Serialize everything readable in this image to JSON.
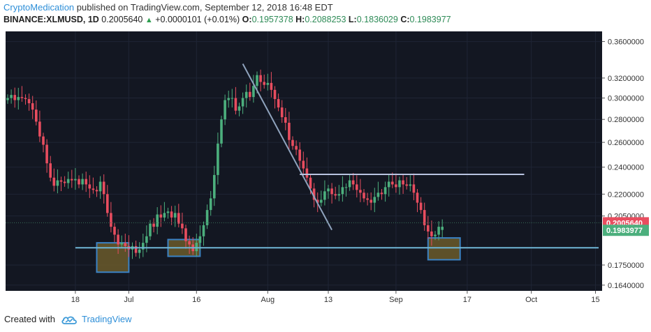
{
  "header": {
    "author": "CryptoMedication",
    "published": "published on TradingView.com, September 12, 2018 16:48 EDT",
    "symbol": "BINANCE:XLMUSD, 1D",
    "last": "0.2005640",
    "change": "+0.0000101 (+0.01%)",
    "o_label": "O:",
    "o_value": "0.1957378",
    "h_label": "H:",
    "h_value": "0.2088253",
    "l_label": "L:",
    "l_value": "0.1836029",
    "c_label": "C:",
    "c_value": "0.1983977"
  },
  "footer": {
    "created_with": "Created with",
    "brand": "TradingView",
    "logo_icon": "tradingview-cloud-icon"
  },
  "colors": {
    "background": "#131722",
    "up": "#4caf7d",
    "down": "#e84d5f",
    "box_fill": "#6b5a2a",
    "box_stroke": "#3b82c4",
    "trendline": "#8fa3bd",
    "resistance": "#b8c3e0",
    "support": "#6fb6d6"
  },
  "chart_data": {
    "type": "candlestick",
    "price_scale": "log",
    "x_ticks": [
      "18",
      "Jul",
      "16",
      "Aug",
      "13",
      "Sep",
      "17",
      "Oct",
      "15"
    ],
    "y_ticks": [
      "0.3600000",
      "0.3200000",
      "0.3000000",
      "0.2800000",
      "0.2600000",
      "0.2400000",
      "0.2200000",
      "0.2050000",
      "0.1750000",
      "0.1640000"
    ],
    "last_price_label": "0.2005640",
    "close_label": "0.1983977",
    "ylim": [
      0.161,
      0.372
    ],
    "closes": [
      0.3,
      0.303,
      0.298,
      0.301,
      0.3,
      0.299,
      0.295,
      0.289,
      0.278,
      0.265,
      0.258,
      0.243,
      0.232,
      0.226,
      0.23,
      0.229,
      0.228,
      0.231,
      0.23,
      0.231,
      0.227,
      0.231,
      0.227,
      0.224,
      0.223,
      0.222,
      0.229,
      0.22,
      0.207,
      0.198,
      0.193,
      0.187,
      0.188,
      0.186,
      0.184,
      0.186,
      0.182,
      0.184,
      0.188,
      0.192,
      0.2,
      0.198,
      0.206,
      0.204,
      0.207,
      0.208,
      0.204,
      0.207,
      0.2,
      0.197,
      0.189,
      0.187,
      0.183,
      0.188,
      0.192,
      0.199,
      0.209,
      0.217,
      0.234,
      0.259,
      0.28,
      0.298,
      0.3,
      0.3,
      0.288,
      0.292,
      0.3,
      0.306,
      0.301,
      0.312,
      0.323,
      0.316,
      0.313,
      0.315,
      0.308,
      0.299,
      0.291,
      0.282,
      0.277,
      0.262,
      0.257,
      0.254,
      0.245,
      0.239,
      0.232,
      0.224,
      0.216,
      0.214,
      0.216,
      0.222,
      0.224,
      0.22,
      0.219,
      0.22,
      0.225,
      0.225,
      0.23,
      0.227,
      0.223,
      0.221,
      0.217,
      0.216,
      0.214,
      0.218,
      0.221,
      0.22,
      0.225,
      0.229,
      0.227,
      0.225,
      0.23,
      0.227,
      0.226,
      0.227,
      0.221,
      0.214,
      0.209,
      0.199,
      0.195,
      0.192,
      0.193,
      0.198,
      0.198
    ],
    "opens": [
      0.298,
      0.3,
      0.303,
      0.298,
      0.301,
      0.3,
      0.299,
      0.295,
      0.289,
      0.278,
      0.265,
      0.258,
      0.243,
      0.232,
      0.226,
      0.23,
      0.229,
      0.228,
      0.231,
      0.23,
      0.231,
      0.227,
      0.231,
      0.227,
      0.224,
      0.223,
      0.222,
      0.229,
      0.22,
      0.207,
      0.198,
      0.193,
      0.187,
      0.188,
      0.186,
      0.184,
      0.186,
      0.182,
      0.184,
      0.188,
      0.192,
      0.2,
      0.198,
      0.206,
      0.204,
      0.207,
      0.208,
      0.204,
      0.207,
      0.2,
      0.197,
      0.189,
      0.187,
      0.183,
      0.188,
      0.192,
      0.199,
      0.209,
      0.217,
      0.234,
      0.259,
      0.28,
      0.298,
      0.3,
      0.3,
      0.288,
      0.292,
      0.3,
      0.306,
      0.301,
      0.312,
      0.323,
      0.316,
      0.313,
      0.315,
      0.308,
      0.299,
      0.291,
      0.282,
      0.277,
      0.262,
      0.257,
      0.254,
      0.245,
      0.239,
      0.232,
      0.224,
      0.216,
      0.214,
      0.216,
      0.222,
      0.224,
      0.22,
      0.219,
      0.22,
      0.225,
      0.225,
      0.23,
      0.227,
      0.223,
      0.221,
      0.217,
      0.216,
      0.214,
      0.218,
      0.221,
      0.22,
      0.225,
      0.229,
      0.227,
      0.225,
      0.23,
      0.227,
      0.226,
      0.227,
      0.221,
      0.214,
      0.209,
      0.199,
      0.195,
      0.192,
      0.193,
      0.196
    ]
  }
}
